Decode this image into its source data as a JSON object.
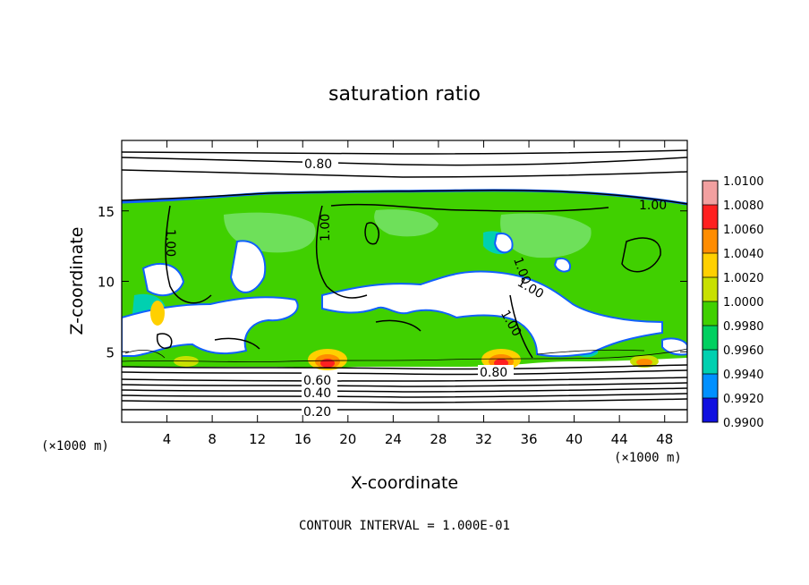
{
  "chart_data": {
    "type": "heatmap",
    "title": "saturation ratio",
    "xlabel": "X-coordinate",
    "ylabel": "Z-coordinate",
    "x_unit": "(×1000 m)",
    "y_unit": "(×1000 m)",
    "xlim": [
      0,
      50
    ],
    "ylim": [
      0,
      20
    ],
    "x_ticks": [
      4,
      8,
      12,
      16,
      20,
      24,
      28,
      32,
      36,
      40,
      44,
      48
    ],
    "y_ticks": [
      5,
      10,
      15
    ],
    "colorbar": {
      "ticks": [
        "1.0100",
        "1.0080",
        "1.0060",
        "1.0040",
        "1.0020",
        "1.0000",
        "0.9980",
        "0.9960",
        "0.9940",
        "0.9920",
        "0.9900"
      ],
      "colors": [
        "#f2a0a0",
        "#ff2020",
        "#ff8c00",
        "#ffd000",
        "#c8e000",
        "#40d000",
        "#00d060",
        "#00d0b0",
        "#0090ff",
        "#1010e0",
        "#5000a0"
      ]
    },
    "contour_labels": [
      "0.80",
      "1.00",
      "1.00",
      "1.00",
      "1.00",
      "1.00",
      "1.00",
      "0.80",
      "0.60",
      "0.40",
      "0.20"
    ],
    "contour_interval_text": "CONTOUR INTERVAL = 1.000E-01",
    "grid": false
  }
}
